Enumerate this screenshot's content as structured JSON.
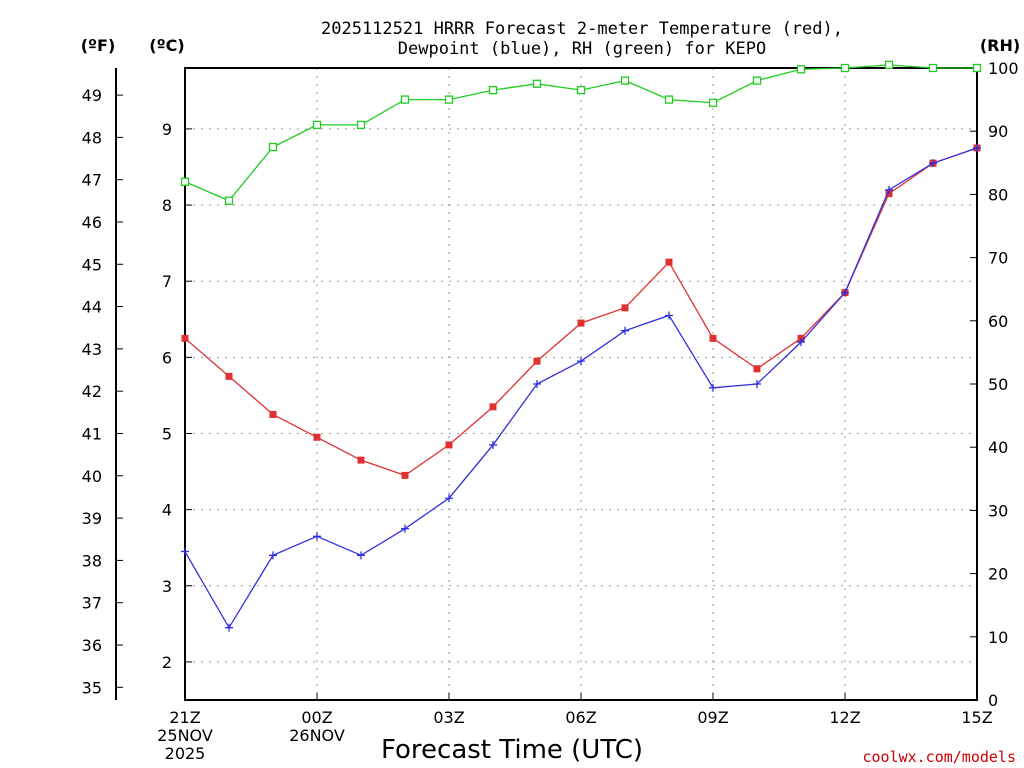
{
  "chart_data": {
    "type": "line",
    "title_line1": "2025112521 HRRR Forecast 2-meter Temperature (red),",
    "title_line2": "Dewpoint (blue), RH (green) for KEPO",
    "unit_f": "(ºF)",
    "unit_c": "(ºC)",
    "unit_rh": "(RH)",
    "xlabel": "Forecast Time (UTC)",
    "credit": "coolwx.com/models",
    "x_hours": [
      0,
      1,
      2,
      3,
      4,
      5,
      6,
      7,
      8,
      9,
      10,
      11,
      12,
      13,
      14,
      15,
      16,
      17,
      18
    ],
    "x_ticks": [
      {
        "hour": 0,
        "lines": [
          "21Z",
          "25NOV",
          "2025"
        ]
      },
      {
        "hour": 3,
        "lines": [
          "00Z",
          "26NOV"
        ]
      },
      {
        "hour": 6,
        "lines": [
          "03Z"
        ]
      },
      {
        "hour": 9,
        "lines": [
          "06Z"
        ]
      },
      {
        "hour": 12,
        "lines": [
          "09Z"
        ]
      },
      {
        "hour": 15,
        "lines": [
          "12Z"
        ]
      },
      {
        "hour": 18,
        "lines": [
          "15Z"
        ]
      }
    ],
    "xlim": [
      0,
      18
    ],
    "celsius_axis": {
      "ylim": [
        1.5,
        9.8
      ],
      "ticks": [
        2,
        3,
        4,
        5,
        6,
        7,
        8,
        9
      ]
    },
    "fahrenheit_axis": {
      "ticks": [
        35,
        36,
        37,
        38,
        39,
        40,
        41,
        42,
        43,
        44,
        45,
        46,
        47,
        48,
        49
      ]
    },
    "rh_axis": {
      "ylim": [
        0,
        100
      ],
      "ticks": [
        0,
        10,
        20,
        30,
        40,
        50,
        60,
        70,
        80,
        90,
        100
      ]
    },
    "series": [
      {
        "name": "Temperature",
        "color": "#e03030",
        "marker": "filled-square",
        "axis": "celsius",
        "values": [
          6.25,
          5.75,
          5.25,
          4.95,
          4.65,
          4.45,
          4.85,
          5.35,
          5.95,
          6.45,
          6.65,
          7.25,
          6.25,
          5.85,
          6.25,
          6.85,
          8.15,
          8.55,
          8.75
        ]
      },
      {
        "name": "Dewpoint",
        "color": "#3030e0",
        "marker": "plus",
        "axis": "celsius",
        "values": [
          3.45,
          2.45,
          3.4,
          3.65,
          3.4,
          3.75,
          4.15,
          4.85,
          5.65,
          5.95,
          6.35,
          6.55,
          5.6,
          5.65,
          6.2,
          6.85,
          8.2,
          8.55,
          8.75
        ]
      },
      {
        "name": "RH",
        "color": "#20cc20",
        "marker": "open-square",
        "axis": "rh",
        "values": [
          82,
          79,
          87.5,
          91,
          91,
          95,
          95,
          96.5,
          97.5,
          96.5,
          98,
          95,
          94.5,
          98,
          99.8,
          100,
          100.5,
          100,
          100
        ]
      }
    ]
  }
}
